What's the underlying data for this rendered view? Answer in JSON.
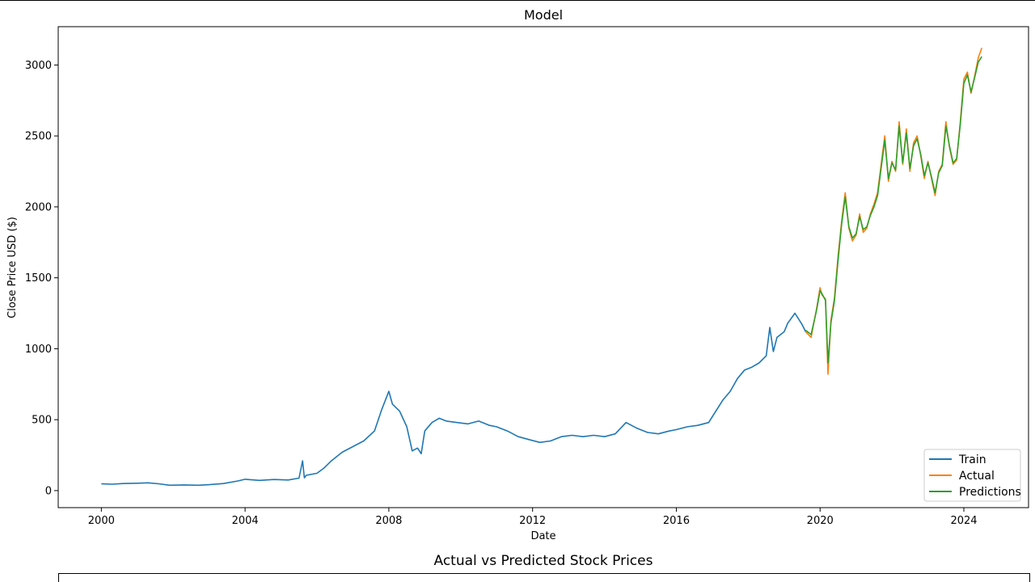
{
  "chart_data": [
    {
      "type": "line",
      "title": "Model",
      "xlabel": "Date",
      "ylabel": "Close Price USD ($)",
      "xlim": [
        1998.8,
        2025.8
      ],
      "ylim": [
        -120,
        3270
      ],
      "xticks": [
        2000,
        2004,
        2008,
        2012,
        2016,
        2020,
        2024
      ],
      "yticks": [
        0,
        500,
        1000,
        1500,
        2000,
        2500,
        3000
      ],
      "legend": "lower right",
      "grid": false,
      "series": [
        {
          "name": "Train",
          "color": "#1f77b4",
          "x": [
            2000.0,
            2000.3,
            2000.6,
            2001.0,
            2001.3,
            2001.6,
            2001.9,
            2002.3,
            2002.7,
            2003.0,
            2003.4,
            2003.8,
            2004.0,
            2004.4,
            2004.8,
            2005.2,
            2005.5,
            2005.6,
            2005.65,
            2005.7,
            2006.0,
            2006.2,
            2006.4,
            2006.7,
            2007.0,
            2007.3,
            2007.6,
            2007.8,
            2008.0,
            2008.1,
            2008.3,
            2008.5,
            2008.65,
            2008.8,
            2008.9,
            2009.0,
            2009.2,
            2009.4,
            2009.6,
            2009.9,
            2010.2,
            2010.5,
            2010.8,
            2011.0,
            2011.3,
            2011.6,
            2011.9,
            2012.2,
            2012.5,
            2012.8,
            2013.1,
            2013.4,
            2013.7,
            2014.0,
            2014.3,
            2014.6,
            2014.9,
            2015.2,
            2015.5,
            2015.8,
            2016.0,
            2016.3,
            2016.6,
            2016.9,
            2017.1,
            2017.3,
            2017.5,
            2017.7,
            2017.9,
            2018.1,
            2018.3,
            2018.5,
            2018.6,
            2018.7,
            2018.8,
            2019.0,
            2019.1,
            2019.3,
            2019.5,
            2019.6
          ],
          "values": [
            48,
            45,
            50,
            52,
            55,
            48,
            38,
            40,
            38,
            42,
            50,
            68,
            80,
            72,
            78,
            75,
            88,
            210,
            90,
            108,
            122,
            160,
            210,
            270,
            310,
            350,
            420,
            570,
            700,
            610,
            560,
            450,
            280,
            300,
            260,
            420,
            480,
            510,
            490,
            480,
            470,
            490,
            460,
            450,
            420,
            380,
            360,
            340,
            350,
            380,
            390,
            380,
            390,
            380,
            400,
            480,
            440,
            410,
            400,
            420,
            430,
            450,
            460,
            480,
            560,
            640,
            700,
            790,
            850,
            870,
            900,
            950,
            1150,
            980,
            1080,
            1120,
            1180,
            1250,
            1170,
            1120
          ]
        },
        {
          "name": "Actual",
          "color": "#ff7f0e",
          "x": [
            2019.6,
            2019.75,
            2019.9,
            2020.0,
            2020.05,
            2020.15,
            2020.22,
            2020.3,
            2020.4,
            2020.5,
            2020.6,
            2020.7,
            2020.8,
            2020.9,
            2021.0,
            2021.1,
            2021.2,
            2021.3,
            2021.4,
            2021.5,
            2021.6,
            2021.8,
            2021.9,
            2022.0,
            2022.1,
            2022.2,
            2022.3,
            2022.4,
            2022.5,
            2022.6,
            2022.7,
            2022.8,
            2022.9,
            2023.0,
            2023.1,
            2023.2,
            2023.3,
            2023.4,
            2023.5,
            2023.6,
            2023.7,
            2023.8,
            2023.9,
            2024.0,
            2024.1,
            2024.2,
            2024.3,
            2024.4,
            2024.5
          ],
          "values": [
            1120,
            1080,
            1280,
            1430,
            1380,
            1350,
            820,
            1200,
            1360,
            1650,
            1900,
            2100,
            1850,
            1760,
            1800,
            1950,
            1820,
            1850,
            1950,
            2020,
            2100,
            2500,
            2180,
            2320,
            2250,
            2600,
            2300,
            2550,
            2250,
            2450,
            2500,
            2360,
            2200,
            2320,
            2200,
            2080,
            2250,
            2300,
            2600,
            2420,
            2300,
            2330,
            2600,
            2900,
            2950,
            2800,
            2920,
            3050,
            3120
          ]
        },
        {
          "name": "Predictions",
          "color": "#2ca02c",
          "x": [
            2019.6,
            2019.75,
            2019.9,
            2020.0,
            2020.05,
            2020.15,
            2020.22,
            2020.3,
            2020.4,
            2020.5,
            2020.6,
            2020.7,
            2020.8,
            2020.9,
            2021.0,
            2021.1,
            2021.2,
            2021.3,
            2021.4,
            2021.5,
            2021.6,
            2021.8,
            2021.9,
            2022.0,
            2022.1,
            2022.2,
            2022.3,
            2022.4,
            2022.5,
            2022.6,
            2022.7,
            2022.8,
            2022.9,
            2023.0,
            2023.1,
            2023.2,
            2023.3,
            2023.4,
            2023.5,
            2023.6,
            2023.7,
            2023.8,
            2023.9,
            2024.0,
            2024.1,
            2024.2,
            2024.3,
            2024.4,
            2024.5
          ],
          "values": [
            1130,
            1100,
            1270,
            1410,
            1390,
            1340,
            900,
            1180,
            1340,
            1620,
            1880,
            2070,
            1860,
            1780,
            1810,
            1930,
            1840,
            1860,
            1940,
            2000,
            2080,
            2470,
            2200,
            2310,
            2260,
            2570,
            2310,
            2520,
            2270,
            2430,
            2480,
            2370,
            2220,
            2310,
            2210,
            2100,
            2240,
            2290,
            2570,
            2430,
            2310,
            2340,
            2580,
            2870,
            2930,
            2810,
            2910,
            3020,
            3060
          ]
        }
      ]
    },
    {
      "type": "line",
      "title": "Actual vs Predicted Stock Prices"
    }
  ]
}
